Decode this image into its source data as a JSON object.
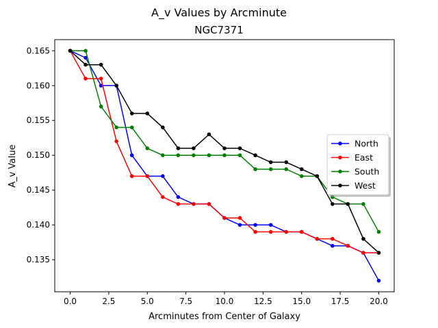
{
  "chart_data": {
    "type": "line",
    "title": "A_v Values by Arcminute",
    "subtitle": "NGC7371",
    "xlabel": "Arcminutes from Center of Galaxy",
    "ylabel": "A_v Value",
    "xlim": [
      -1.0,
      21.0
    ],
    "ylim": [
      0.1304,
      0.1666
    ],
    "x_ticks": [
      0.0,
      2.5,
      5.0,
      7.5,
      10.0,
      12.5,
      15.0,
      17.5,
      20.0
    ],
    "x_tick_labels": [
      "0.0",
      "2.5",
      "5.0",
      "7.5",
      "10.0",
      "12.5",
      "15.0",
      "17.5",
      "20.0"
    ],
    "y_ticks": [
      0.135,
      0.14,
      0.145,
      0.15,
      0.155,
      0.16,
      0.165
    ],
    "y_tick_labels": [
      "0.135",
      "0.140",
      "0.145",
      "0.150",
      "0.155",
      "0.160",
      "0.165"
    ],
    "grid": false,
    "legend_position": "center-right",
    "x": [
      0,
      1,
      2,
      3,
      4,
      5,
      6,
      7,
      8,
      9,
      10,
      11,
      12,
      13,
      14,
      15,
      16,
      17,
      18,
      19,
      20
    ],
    "series": [
      {
        "name": "North",
        "color": "#0000ff",
        "values": [
          0.165,
          0.164,
          0.16,
          0.16,
          0.15,
          0.147,
          0.147,
          0.144,
          0.143,
          0.143,
          0.141,
          0.14,
          0.14,
          0.14,
          0.139,
          0.139,
          0.138,
          0.137,
          0.137,
          0.136,
          0.132
        ]
      },
      {
        "name": "East",
        "color": "#ff0000",
        "values": [
          0.165,
          0.161,
          0.161,
          0.152,
          0.147,
          0.147,
          0.144,
          0.143,
          0.143,
          0.143,
          0.141,
          0.141,
          0.139,
          0.139,
          0.139,
          0.139,
          0.138,
          0.138,
          0.137,
          0.136,
          0.136
        ]
      },
      {
        "name": "South",
        "color": "#008000",
        "values": [
          0.165,
          0.165,
          0.157,
          0.154,
          0.154,
          0.151,
          0.15,
          0.15,
          0.15,
          0.15,
          0.15,
          0.15,
          0.148,
          0.148,
          0.148,
          0.147,
          0.147,
          0.144,
          0.143,
          0.143,
          0.139
        ]
      },
      {
        "name": "West",
        "color": "#000000",
        "values": [
          0.165,
          0.163,
          0.163,
          0.16,
          0.156,
          0.156,
          0.154,
          0.151,
          0.151,
          0.153,
          0.151,
          0.151,
          0.15,
          0.149,
          0.149,
          0.148,
          0.147,
          0.143,
          0.143,
          0.138,
          0.136
        ]
      }
    ]
  }
}
